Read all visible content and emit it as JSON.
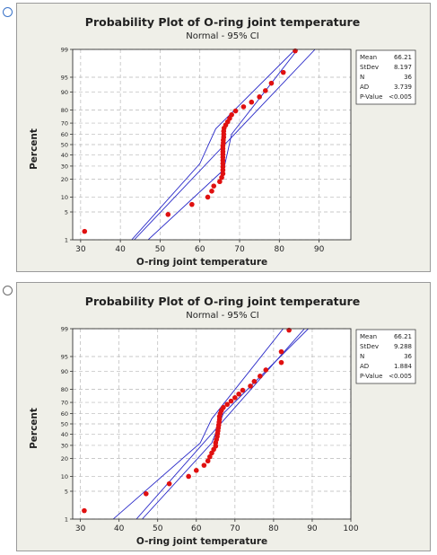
{
  "charts": [
    {
      "type": "scatter",
      "title": "Probability Plot of O-ring joint temperature",
      "subtitle": "Normal - 95% CI",
      "xlabel": "O-ring joint temperature",
      "ylabel": "Percent",
      "xlim": [
        28,
        98
      ],
      "x_ticks": [
        30,
        40,
        50,
        60,
        70,
        80,
        90
      ],
      "y_ticks": [
        1,
        5,
        10,
        20,
        30,
        40,
        50,
        60,
        70,
        80,
        90,
        95,
        99
      ],
      "grid": true,
      "stats": [
        {
          "label": "Mean",
          "value": "66.21"
        },
        {
          "label": "StDev",
          "value": "8.197"
        },
        {
          "label": "N",
          "value": "36"
        },
        {
          "label": "AD",
          "value": "3.739"
        },
        {
          "label": "P-Value",
          "value": "<0.005"
        }
      ],
      "fit_line": [
        [
          43.5,
          1
        ],
        [
          89.0,
          99
        ]
      ],
      "ci_lower": [
        [
          47.0,
          1
        ],
        [
          66.0,
          27
        ],
        [
          68.0,
          60
        ],
        [
          88.0,
          99.7
        ]
      ],
      "ci_upper": [
        [
          39.0,
          0.3
        ],
        [
          60.0,
          32
        ],
        [
          64.0,
          65
        ],
        [
          84.0,
          99
        ]
      ],
      "points": [
        [
          31,
          1.7
        ],
        [
          52,
          4.4
        ],
        [
          58,
          7.2
        ],
        [
          62,
          10
        ],
        [
          63,
          12.8
        ],
        [
          63.5,
          15.6
        ],
        [
          65,
          18.3
        ],
        [
          65.5,
          21.1
        ],
        [
          65.8,
          23.9
        ],
        [
          65.8,
          26.7
        ],
        [
          65.8,
          29.4
        ],
        [
          65.8,
          32.2
        ],
        [
          65.8,
          35
        ],
        [
          65.8,
          37.8
        ],
        [
          65.8,
          40.6
        ],
        [
          65.8,
          43.3
        ],
        [
          65.8,
          46.1
        ],
        [
          65.8,
          48.9
        ],
        [
          65.9,
          51.7
        ],
        [
          65.9,
          54.4
        ],
        [
          66,
          57.2
        ],
        [
          66,
          60
        ],
        [
          66,
          62.8
        ],
        [
          66.1,
          65.6
        ],
        [
          66.5,
          68.3
        ],
        [
          67,
          71.1
        ],
        [
          67.5,
          73.9
        ],
        [
          68,
          76.7
        ],
        [
          69,
          79.4
        ],
        [
          71,
          82.2
        ],
        [
          73,
          85
        ],
        [
          75,
          87.8
        ],
        [
          76.5,
          90.6
        ],
        [
          78,
          93.3
        ],
        [
          81,
          96.1
        ],
        [
          84,
          98.9
        ]
      ]
    },
    {
      "type": "scatter",
      "title": "Probability Plot of O-ring joint temperature",
      "subtitle": "Normal - 95% CI",
      "xlabel": "O-ring joint temperature",
      "ylabel": "Percent",
      "xlim": [
        28,
        100
      ],
      "x_ticks": [
        30,
        40,
        50,
        60,
        70,
        80,
        90,
        100
      ],
      "y_ticks": [
        1,
        5,
        10,
        20,
        30,
        40,
        50,
        60,
        70,
        80,
        90,
        95,
        99
      ],
      "grid": true,
      "stats": [
        {
          "label": "Mean",
          "value": "66.21"
        },
        {
          "label": "StDev",
          "value": "9.288"
        },
        {
          "label": "N",
          "value": "36"
        },
        {
          "label": "AD",
          "value": "1.884"
        },
        {
          "label": "P-Value",
          "value": "<0.005"
        }
      ],
      "fit_line": [
        [
          44.5,
          1
        ],
        [
          88.0,
          99
        ]
      ],
      "ci_lower": [
        [
          46.0,
          1
        ],
        [
          64.0,
          32
        ],
        [
          67.0,
          60
        ],
        [
          89.0,
          99
        ]
      ],
      "ci_upper": [
        [
          38.5,
          1
        ],
        [
          61.0,
          32
        ],
        [
          64.0,
          55
        ],
        [
          86.0,
          99.7
        ]
      ],
      "points": [
        [
          31,
          1.7
        ],
        [
          47,
          4.4
        ],
        [
          53,
          7.2
        ],
        [
          58,
          10
        ],
        [
          60,
          12.8
        ],
        [
          62,
          15.6
        ],
        [
          63,
          18.3
        ],
        [
          63.5,
          21.1
        ],
        [
          64,
          23.9
        ],
        [
          64.5,
          26.7
        ],
        [
          65,
          29.4
        ],
        [
          65,
          32.2
        ],
        [
          65.2,
          35
        ],
        [
          65.4,
          37.8
        ],
        [
          65.5,
          40.6
        ],
        [
          65.6,
          43.3
        ],
        [
          65.7,
          46.1
        ],
        [
          65.8,
          48.9
        ],
        [
          65.9,
          51.7
        ],
        [
          66,
          54.4
        ],
        [
          66,
          57.2
        ],
        [
          66.2,
          60
        ],
        [
          66.5,
          62.8
        ],
        [
          67,
          65.6
        ],
        [
          68,
          68.3
        ],
        [
          69,
          71.1
        ],
        [
          70,
          73.9
        ],
        [
          71,
          76.7
        ],
        [
          72,
          79.4
        ],
        [
          74,
          82.2
        ],
        [
          75,
          85
        ],
        [
          76.5,
          87.8
        ],
        [
          78,
          90.6
        ],
        [
          82,
          93.3
        ],
        [
          82,
          96.1
        ],
        [
          84,
          98.9
        ]
      ]
    }
  ]
}
